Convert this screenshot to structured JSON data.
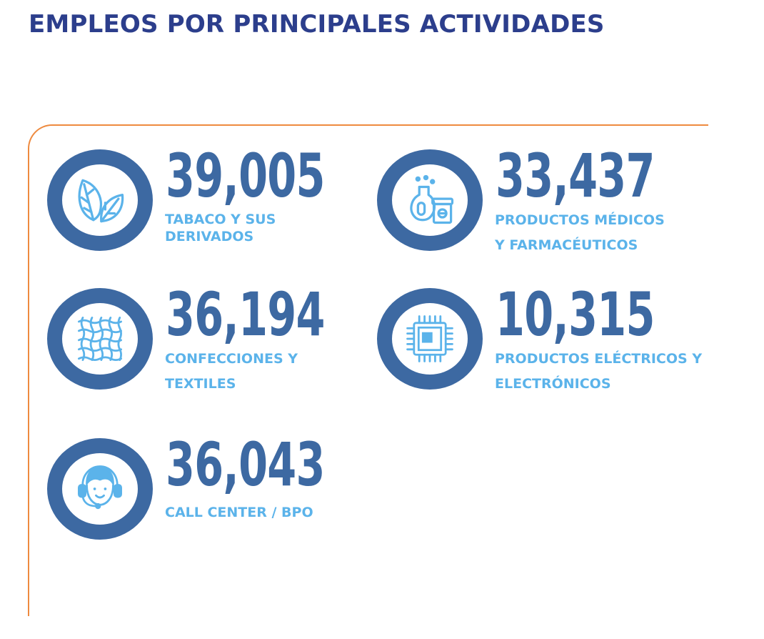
{
  "title": "EMPLEOS POR PRINCIPALES ACTIVIDADES",
  "colors": {
    "title": "#2c3e8c",
    "numbers": "#3d69a2",
    "labels": "#5bb3ea",
    "frame": "#ee8a3f"
  },
  "stats": [
    {
      "value": "39,005",
      "label_lines": [
        "TABACO Y SUS",
        "DERIVADOS"
      ],
      "icon": "leaves-icon"
    },
    {
      "value": "33,437",
      "label_lines": [
        "PRODUCTOS MÉDICOS",
        "Y FARMACÉUTICOS"
      ],
      "icon": "pharma-icon"
    },
    {
      "value": "36,194",
      "label_lines": [
        "CONFECCIONES Y",
        "TEXTILES"
      ],
      "icon": "fabric-icon"
    },
    {
      "value": "10,315",
      "label_lines": [
        "PRODUCTOS ELÉCTRICOS Y",
        "ELECTRÓNICOS"
      ],
      "icon": "chip-icon"
    },
    {
      "value": "36,043",
      "label_lines": [
        "CALL CENTER / BPO"
      ],
      "icon": "headset-agent-icon"
    }
  ]
}
